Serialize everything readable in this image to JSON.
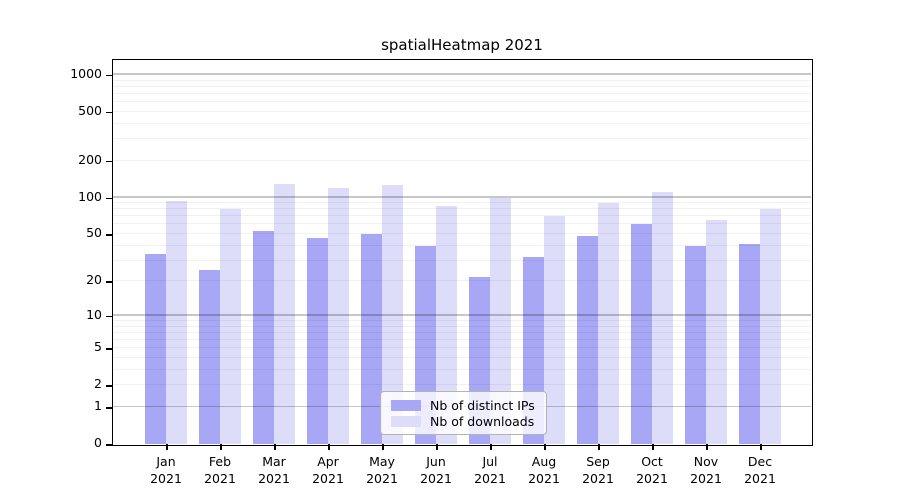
{
  "chart_data": {
    "type": "bar",
    "title": "spatialHeatmap 2021",
    "categories": [
      "Jan 2021",
      "Feb 2021",
      "Mar 2021",
      "Apr 2021",
      "May 2021",
      "Jun 2021",
      "Jul 2021",
      "Aug 2021",
      "Sep 2021",
      "Oct 2021",
      "Nov 2021",
      "Dec 2021"
    ],
    "series": [
      {
        "name": "Nb of distinct IPs",
        "color": "#a7a7f6",
        "values": [
          34,
          25,
          53,
          46,
          50,
          40,
          22,
          32,
          48,
          61,
          40,
          41
        ]
      },
      {
        "name": "Nb of downloads",
        "color": "#ddddfa",
        "values": [
          94,
          80,
          130,
          120,
          127,
          85,
          99,
          70,
          90,
          112,
          65,
          81
        ]
      }
    ],
    "xlabel": "",
    "ylabel": "",
    "yscale": "log1p",
    "ylim": [
      0,
      1320
    ],
    "yticks": [
      1000,
      500,
      200,
      100,
      50,
      20,
      10,
      5,
      2,
      1,
      0
    ],
    "grid": true,
    "legend_position": "bottom-center",
    "colors": {
      "major_gridline": "#c8c8c8",
      "minor_gridline": "#efefef",
      "axis": "#000000",
      "background": "#ffffff"
    }
  }
}
